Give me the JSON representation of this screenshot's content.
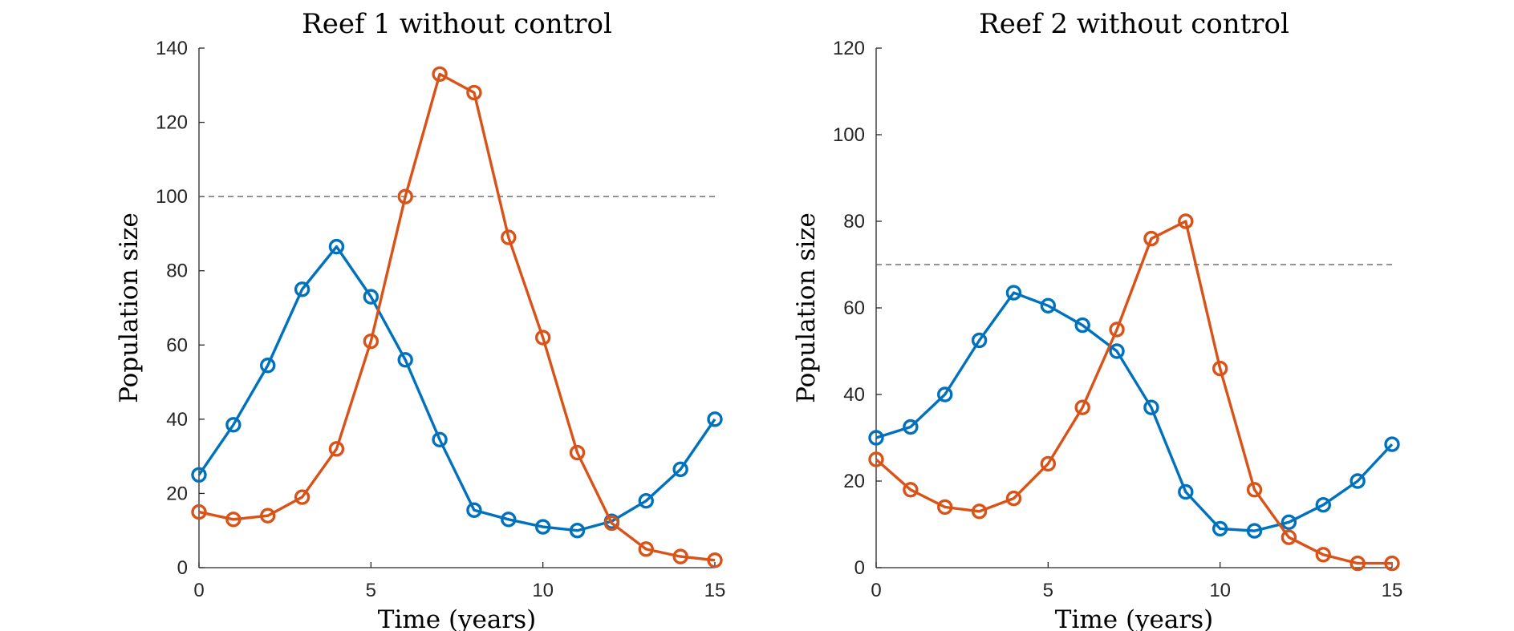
{
  "chart_data": [
    {
      "type": "line",
      "title": "Reef 1 without control",
      "xlabel": "Time (years)",
      "ylabel": "Population size",
      "xlim": [
        0,
        15
      ],
      "ylim": [
        0,
        140
      ],
      "xticks": [
        0,
        5,
        10,
        15
      ],
      "yticks": [
        0,
        20,
        40,
        60,
        80,
        100,
        120,
        140
      ],
      "grid": false,
      "reference_line": {
        "y": 100,
        "style": "dashed",
        "color": "#555555"
      },
      "x": [
        0,
        1,
        2,
        3,
        4,
        5,
        6,
        7,
        8,
        9,
        10,
        11,
        12,
        13,
        14,
        15
      ],
      "series": [
        {
          "color": "#0072BD",
          "marker": "circle",
          "values": [
            25,
            38.5,
            54.5,
            75,
            86.5,
            73,
            56,
            34.5,
            15.5,
            13,
            11,
            10,
            12.5,
            18,
            26.5,
            40
          ]
        },
        {
          "color": "#D95319",
          "marker": "circle",
          "values": [
            15,
            13,
            14,
            19,
            32,
            61,
            100,
            133,
            128,
            89,
            62,
            31,
            12,
            5,
            3,
            2
          ]
        }
      ]
    },
    {
      "type": "line",
      "title": "Reef 2 without control",
      "xlabel": "Time (years)",
      "ylabel": "Population size",
      "xlim": [
        0,
        15
      ],
      "ylim": [
        0,
        120
      ],
      "xticks": [
        0,
        5,
        10,
        15
      ],
      "yticks": [
        0,
        20,
        40,
        60,
        80,
        100,
        120
      ],
      "grid": false,
      "reference_line": {
        "y": 70,
        "style": "dashed",
        "color": "#555555"
      },
      "x": [
        0,
        1,
        2,
        3,
        4,
        5,
        6,
        7,
        8,
        9,
        10,
        11,
        12,
        13,
        14,
        15
      ],
      "series": [
        {
          "color": "#0072BD",
          "marker": "circle",
          "values": [
            30,
            32.5,
            40,
            52.5,
            63.5,
            60.5,
            56,
            50,
            37,
            17.5,
            9,
            8.5,
            10.5,
            14.5,
            20,
            28.5
          ]
        },
        {
          "color": "#D95319",
          "marker": "circle",
          "values": [
            25,
            18,
            14,
            13,
            16,
            24,
            37,
            55,
            76,
            80,
            46,
            18,
            7,
            3,
            1,
            1
          ]
        }
      ]
    }
  ]
}
